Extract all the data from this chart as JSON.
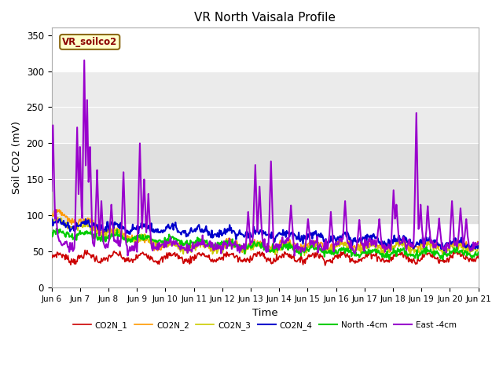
{
  "title": "VR North Vaisala Profile",
  "ylabel": "Soil CO2 (mV)",
  "xlabel": "Time",
  "subtitle_box": "VR_soilco2",
  "ylim": [
    0,
    360
  ],
  "yticks": [
    0,
    50,
    100,
    150,
    200,
    250,
    300,
    350
  ],
  "bg_band1": [
    90,
    200
  ],
  "bg_band2": [
    200,
    300
  ],
  "series": {
    "CO2N_1": {
      "color": "#cc0000",
      "lw": 1.2
    },
    "CO2N_2": {
      "color": "#ff9900",
      "lw": 1.2
    },
    "CO2N_3": {
      "color": "#cccc00",
      "lw": 1.2
    },
    "CO2N_4": {
      "color": "#0000cc",
      "lw": 1.5
    },
    "North -4cm": {
      "color": "#00cc00",
      "lw": 1.5
    },
    "East -4cm": {
      "color": "#9900cc",
      "lw": 1.5
    }
  },
  "xtick_labels": [
    "Jun 6",
    "Jun 7",
    "Jun 8",
    "Jun 9",
    "Jun 10",
    "Jun 11",
    "Jun 12",
    "Jun 13",
    "Jun 14",
    "Jun 15",
    "Jun 16",
    "Jun 17",
    "Jun 18",
    "Jun 19",
    "Jun 20",
    "Jun 21"
  ],
  "n_points": 600,
  "plot_facecolor": "#ffffff",
  "fig_facecolor": "#ffffff"
}
